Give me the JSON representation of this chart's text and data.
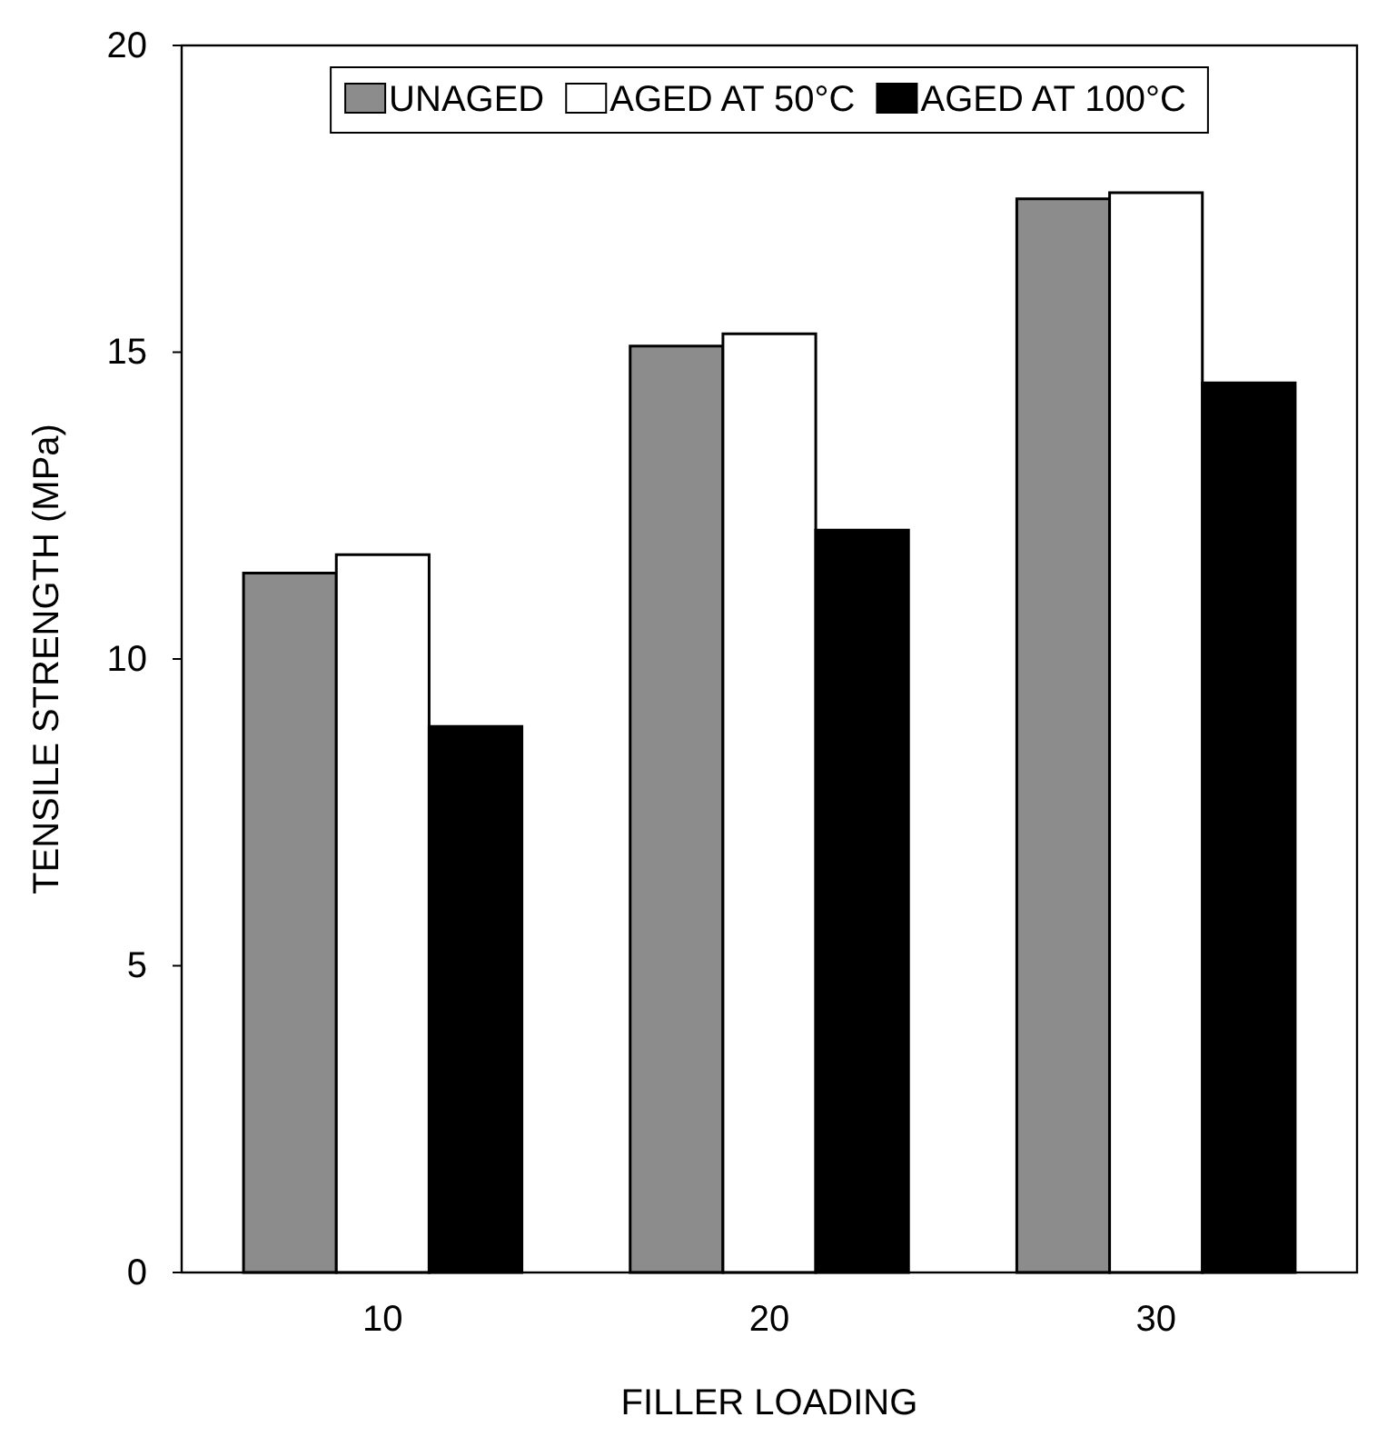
{
  "chart_data": {
    "type": "bar",
    "xlabel": "FILLER LOADING",
    "ylabel": "TENSILE STRENGTH (MPa)",
    "categories": [
      "10",
      "20",
      "30"
    ],
    "series": [
      {
        "name": "UNAGED",
        "color": "#8c8c8c",
        "values": [
          11.4,
          15.1,
          17.5
        ]
      },
      {
        "name": "AGED AT 50°C",
        "color": "#ffffff",
        "values": [
          11.7,
          15.3,
          17.6
        ]
      },
      {
        "name": "AGED AT 100°C",
        "color": "#000000",
        "values": [
          8.9,
          12.1,
          14.5
        ]
      }
    ],
    "ylim": [
      0,
      20
    ],
    "yticks": [
      0,
      5,
      10,
      15,
      20
    ],
    "grid": false,
    "legend": "top"
  }
}
